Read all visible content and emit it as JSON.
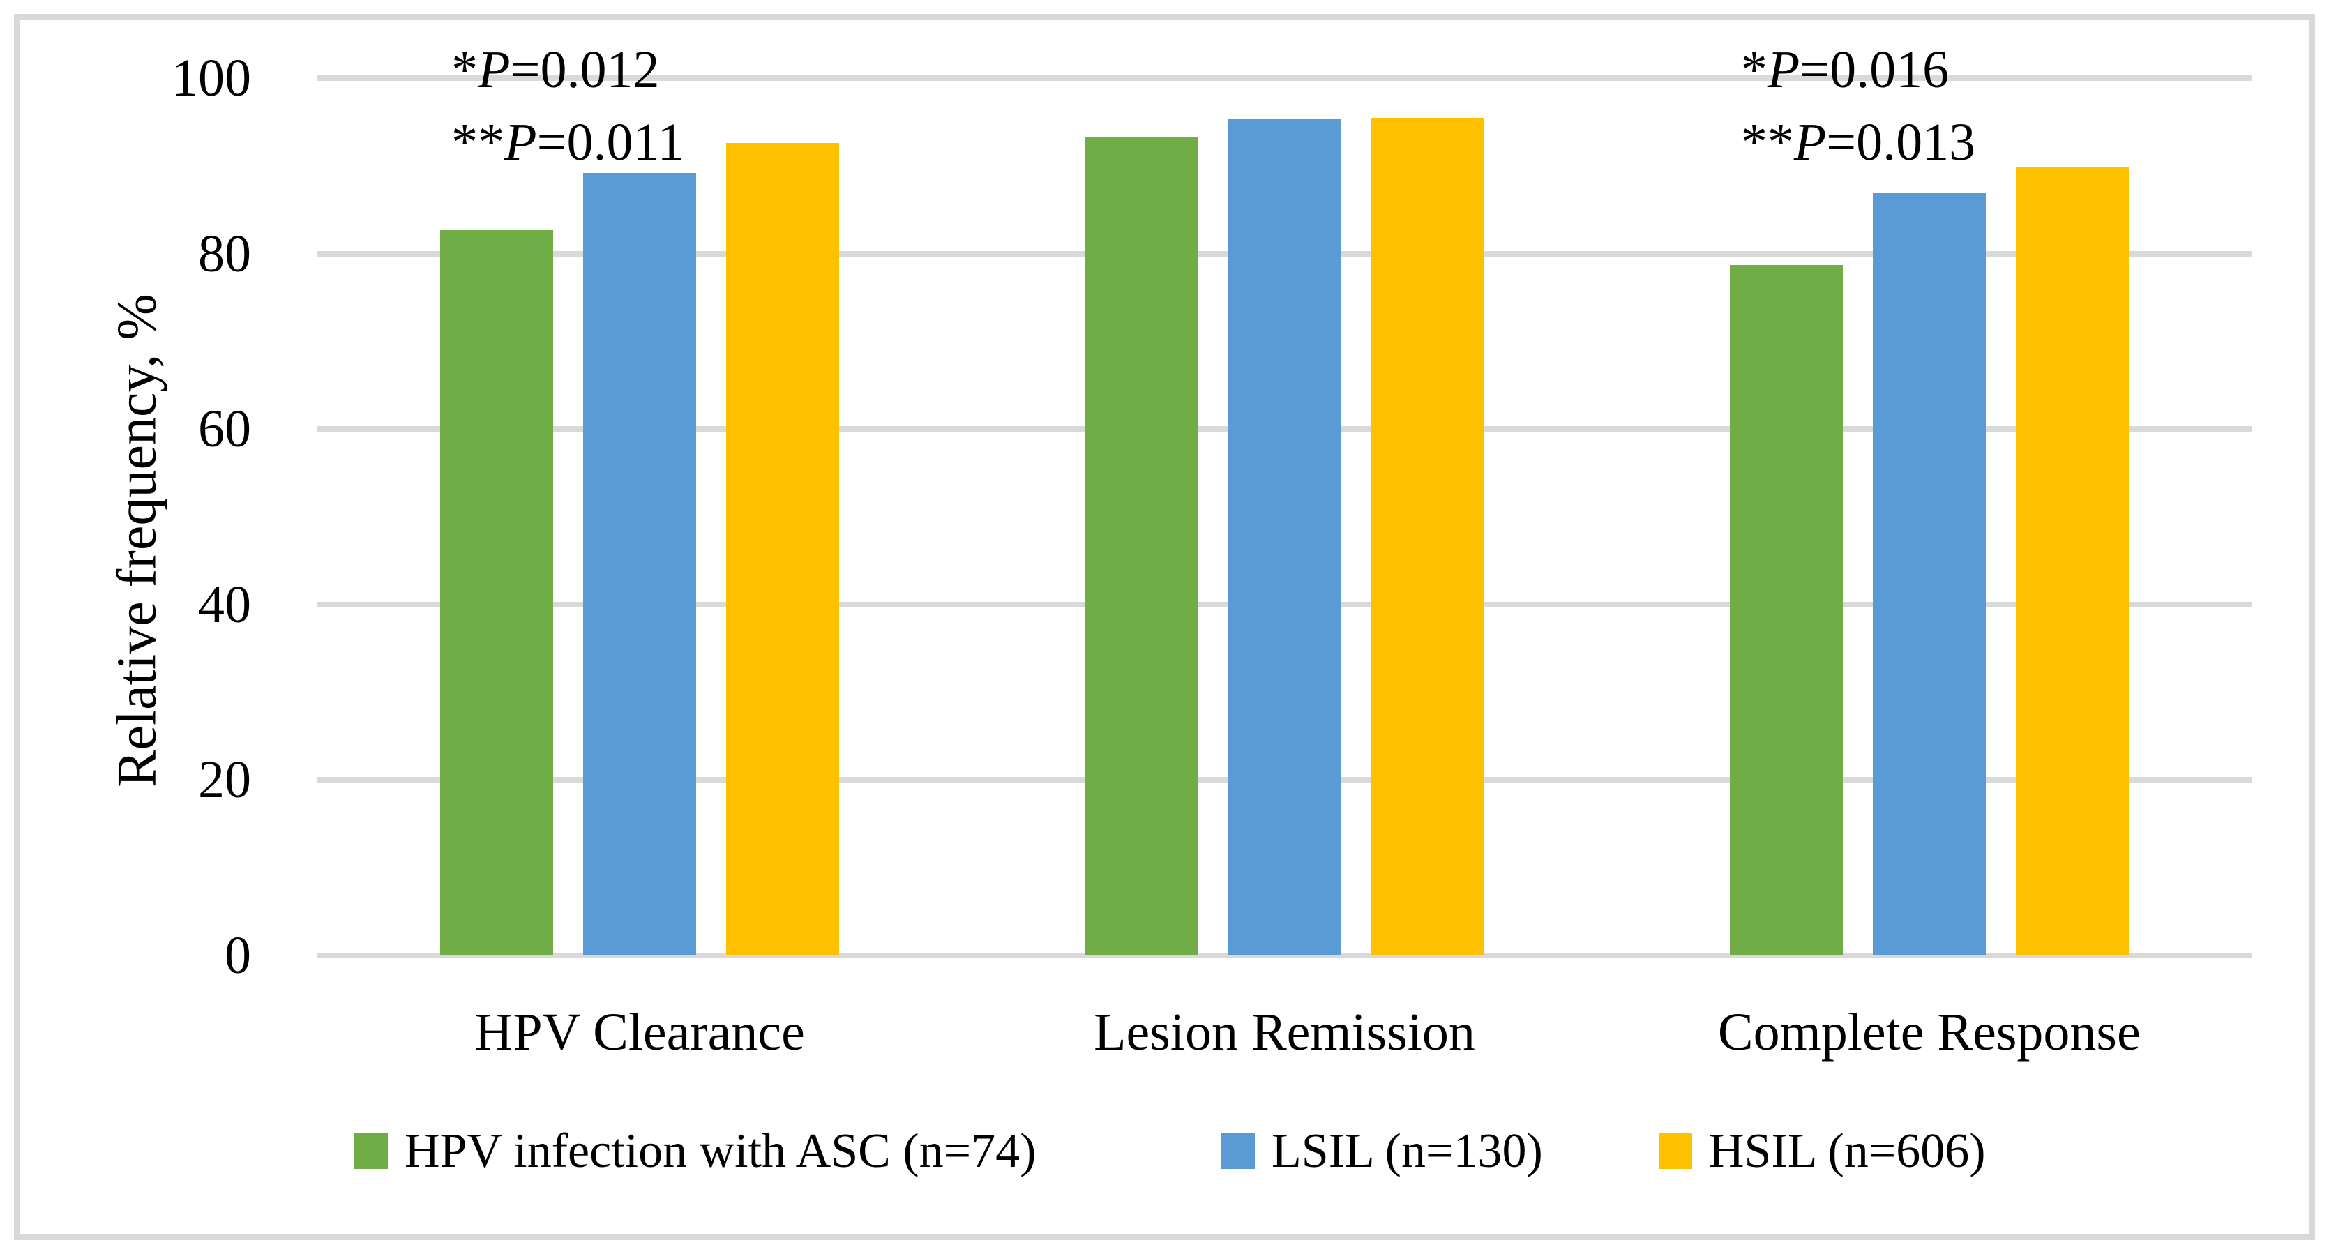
{
  "figure": {
    "background": "#ffffff",
    "border_color": "#d9d9d9",
    "gridline_color": "#d9d9d9",
    "text_color": "#000000"
  },
  "chart_data": {
    "type": "bar",
    "title": "",
    "xlabel": "",
    "ylabel": "Relative frequency, %",
    "ylim": [
      0,
      100
    ],
    "yticks": [
      0,
      20,
      40,
      60,
      80,
      100
    ],
    "grid": true,
    "legend_position": "bottom",
    "categories": [
      "HPV Clearance",
      "Lesion Remission",
      "Complete Response"
    ],
    "series": [
      {
        "name": "HPV infection with ASC (n=74)",
        "color": "#70AD47",
        "values": [
          82.7,
          93.3,
          78.7
        ]
      },
      {
        "name": "LSIL (n=130)",
        "color": "#5B9BD5",
        "values": [
          89.2,
          95.4,
          86.9
        ]
      },
      {
        "name": "HSIL (n=606)",
        "color": "#FFC000",
        "values": [
          92.6,
          95.5,
          89.9
        ]
      }
    ],
    "annotations": [
      {
        "group": "HPV Clearance",
        "lines": [
          "*P=0.012",
          "**P=0.011"
        ]
      },
      {
        "group": "Complete Response",
        "lines": [
          "*P=0.016",
          "**P=0.013"
        ]
      }
    ]
  }
}
